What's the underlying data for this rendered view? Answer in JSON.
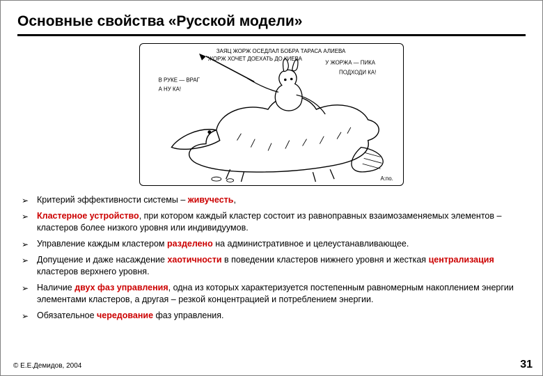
{
  "title": "Основные свойства «Русской модели»",
  "accent_color": "#cc0000",
  "text_color": "#000000",
  "bullet_glyph": "➢",
  "illustration": {
    "captions": [
      "ЗАЯЦ ЖОРЖ ОСЕДЛАЛ БОБРА ТАРАСА АЛИЕВА",
      "ЖОРЖ ХОЧЕТ ДОЕХАТЬ ДО КИЕВА",
      "В РУКЕ — ВРАГ",
      "А НУ КА!",
      "У ЖОРЖА — ПИКА",
      "ПОДХОДИ КА!"
    ]
  },
  "bullets": [
    {
      "segments": [
        {
          "t": "Критерий эффективности системы – "
        },
        {
          "t": "живучесть",
          "kw": true,
          "accent": true
        },
        {
          "t": ","
        }
      ]
    },
    {
      "segments": [
        {
          "t": "Кластерное устройство",
          "kw": true,
          "accent": true
        },
        {
          "t": ", при котором каждый кластер состоит из равноправных взаимозаменяемых элементов – кластеров более низкого уровня или индивидуумов."
        }
      ]
    },
    {
      "segments": [
        {
          "t": "Управление каждым кластером "
        },
        {
          "t": "разделено",
          "kw": true,
          "accent": true
        },
        {
          "t": " на административное и целеустанавливающее."
        }
      ]
    },
    {
      "segments": [
        {
          "t": "Допущение и даже насаждение "
        },
        {
          "t": "хаотичности",
          "kw": true,
          "accent": true
        },
        {
          "t": " в поведении кластеров нижнего уровня и жесткая "
        },
        {
          "t": "централизация",
          "kw": true,
          "accent": true
        },
        {
          "t": " кластеров верхнего уровня."
        }
      ]
    },
    {
      "segments": [
        {
          "t": "Наличие "
        },
        {
          "t": "двух фаз управления",
          "kw": true,
          "accent": true
        },
        {
          "t": ", одна из которых характеризуется постепенным равномерным накоплением энергии элементами кластеров, а другая – резкой концентрацией и потреблением энергии."
        }
      ]
    },
    {
      "segments": [
        {
          "t": "Обязательное "
        },
        {
          "t": "чередование",
          "kw": true,
          "accent": true
        },
        {
          "t": " фаз управления."
        }
      ]
    }
  ],
  "copyright": "© Е.Е.Демидов, 2004",
  "page_number": "31"
}
